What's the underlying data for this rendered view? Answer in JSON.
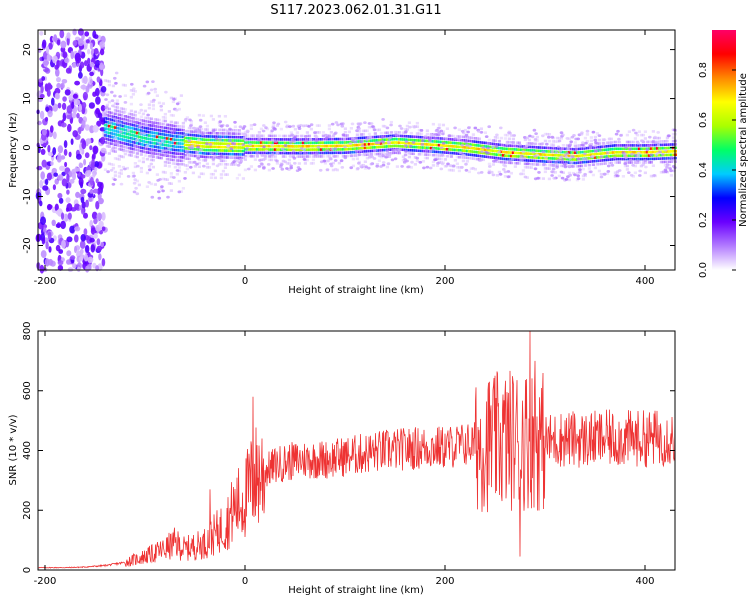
{
  "figure": {
    "title": "S117.2023.062.01.31.G11"
  },
  "chart_data": [
    {
      "type": "heatmap",
      "xlabel": "Height of straight line (km)",
      "ylabel": "Frequency (Hz)",
      "xlim": [
        -207,
        430
      ],
      "ylim": [
        -25,
        24
      ],
      "xticks": [
        -200,
        0,
        200,
        400
      ],
      "yticks": [
        -20,
        -10,
        0,
        10,
        20
      ],
      "grid": false,
      "trace": {
        "x": [
          -140,
          -120,
          -100,
          -85,
          -70,
          -55,
          -40,
          -20,
          0,
          50,
          100,
          150,
          190,
          220,
          260,
          300,
          330,
          370,
          400,
          430
        ],
        "y": [
          4,
          3,
          2,
          1.5,
          1,
          0.8,
          0.5,
          0.4,
          0.3,
          0.2,
          0.3,
          1.0,
          0.5,
          0,
          -1,
          -1.5,
          -1.8,
          -1,
          -1,
          -0.8
        ]
      },
      "colorbar": {
        "label": "Normalized spectral amplitude",
        "min": 0.0,
        "max": 0.96,
        "ticks": [
          0.0,
          0.2,
          0.4,
          0.6,
          0.8
        ],
        "colors": [
          "#ffffff",
          "#b37cff",
          "#6a00ff",
          "#0000ff",
          "#00ccff",
          "#00ff66",
          "#aaff00",
          "#ffff00",
          "#ff8800",
          "#ff0000",
          "#ff0066"
        ]
      }
    },
    {
      "type": "line",
      "xlabel": "Height of straight line (km)",
      "ylabel": "SNR (10 * v/v)",
      "xlim": [
        -207,
        430
      ],
      "ylim": [
        0,
        800
      ],
      "xticks": [
        -200,
        0,
        200,
        400
      ],
      "yticks": [
        0,
        200,
        400,
        600,
        800
      ],
      "grid": false,
      "series": [
        {
          "color": "#ee3333",
          "x": [
            -207,
            -180,
            -160,
            -140,
            -120,
            -100,
            -80,
            -70,
            -60,
            -50,
            -40,
            -30,
            -20,
            -10,
            0,
            5,
            10,
            20,
            30,
            40,
            60,
            80,
            100,
            120,
            140,
            160,
            180,
            200,
            220,
            240,
            250,
            260,
            270,
            280,
            290,
            300,
            320,
            340,
            360,
            380,
            400,
            430
          ],
          "y": [
            8,
            8,
            10,
            15,
            25,
            45,
            70,
            90,
            70,
            80,
            90,
            120,
            150,
            210,
            240,
            280,
            310,
            330,
            350,
            360,
            370,
            370,
            380,
            390,
            400,
            405,
            410,
            410,
            420,
            425,
            430,
            435,
            440,
            440,
            440,
            430,
            440,
            435,
            440,
            440,
            440,
            445
          ]
        }
      ],
      "annotations": {
        "spikes": [
          {
            "x": 8,
            "y": 580
          },
          {
            "x": -35,
            "y": 270
          },
          {
            "x": 250,
            "y": 650
          },
          {
            "x": 285,
            "y": 800
          },
          {
            "x": 275,
            "y": 45
          },
          {
            "x": 290,
            "y": 700
          }
        ]
      }
    }
  ]
}
